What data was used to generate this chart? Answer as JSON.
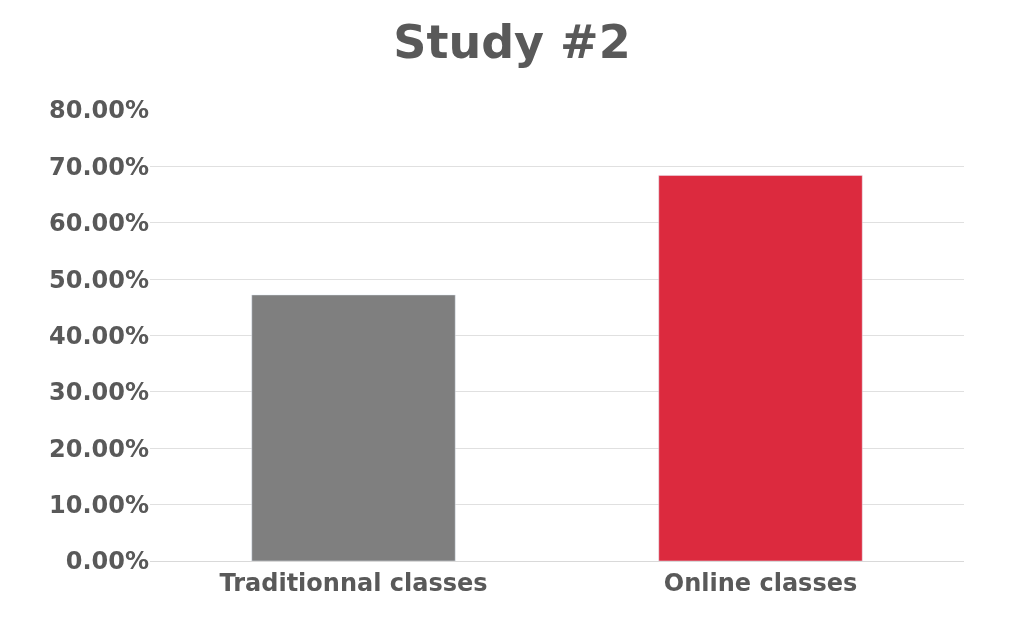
{
  "chart_data": {
    "type": "bar",
    "title": "Study #2",
    "categories": [
      "Traditionnal classes",
      "Online classes"
    ],
    "values": [
      47.2,
      68.4
    ],
    "colors": [
      "#7f7f7f",
      "#dc2a3e"
    ],
    "ylim": [
      0,
      80
    ],
    "yticks": [
      {
        "value": 0,
        "label": "0.00%"
      },
      {
        "value": 10,
        "label": "10.00%"
      },
      {
        "value": 20,
        "label": "20.00%"
      },
      {
        "value": 30,
        "label": "30.00%"
      },
      {
        "value": 40,
        "label": "40.00%"
      },
      {
        "value": 50,
        "label": "50.00%"
      },
      {
        "value": 60,
        "label": "60.00%"
      },
      {
        "value": 70,
        "label": "70.00%"
      },
      {
        "value": 80,
        "label": "80.00%"
      }
    ],
    "grid": "y"
  }
}
